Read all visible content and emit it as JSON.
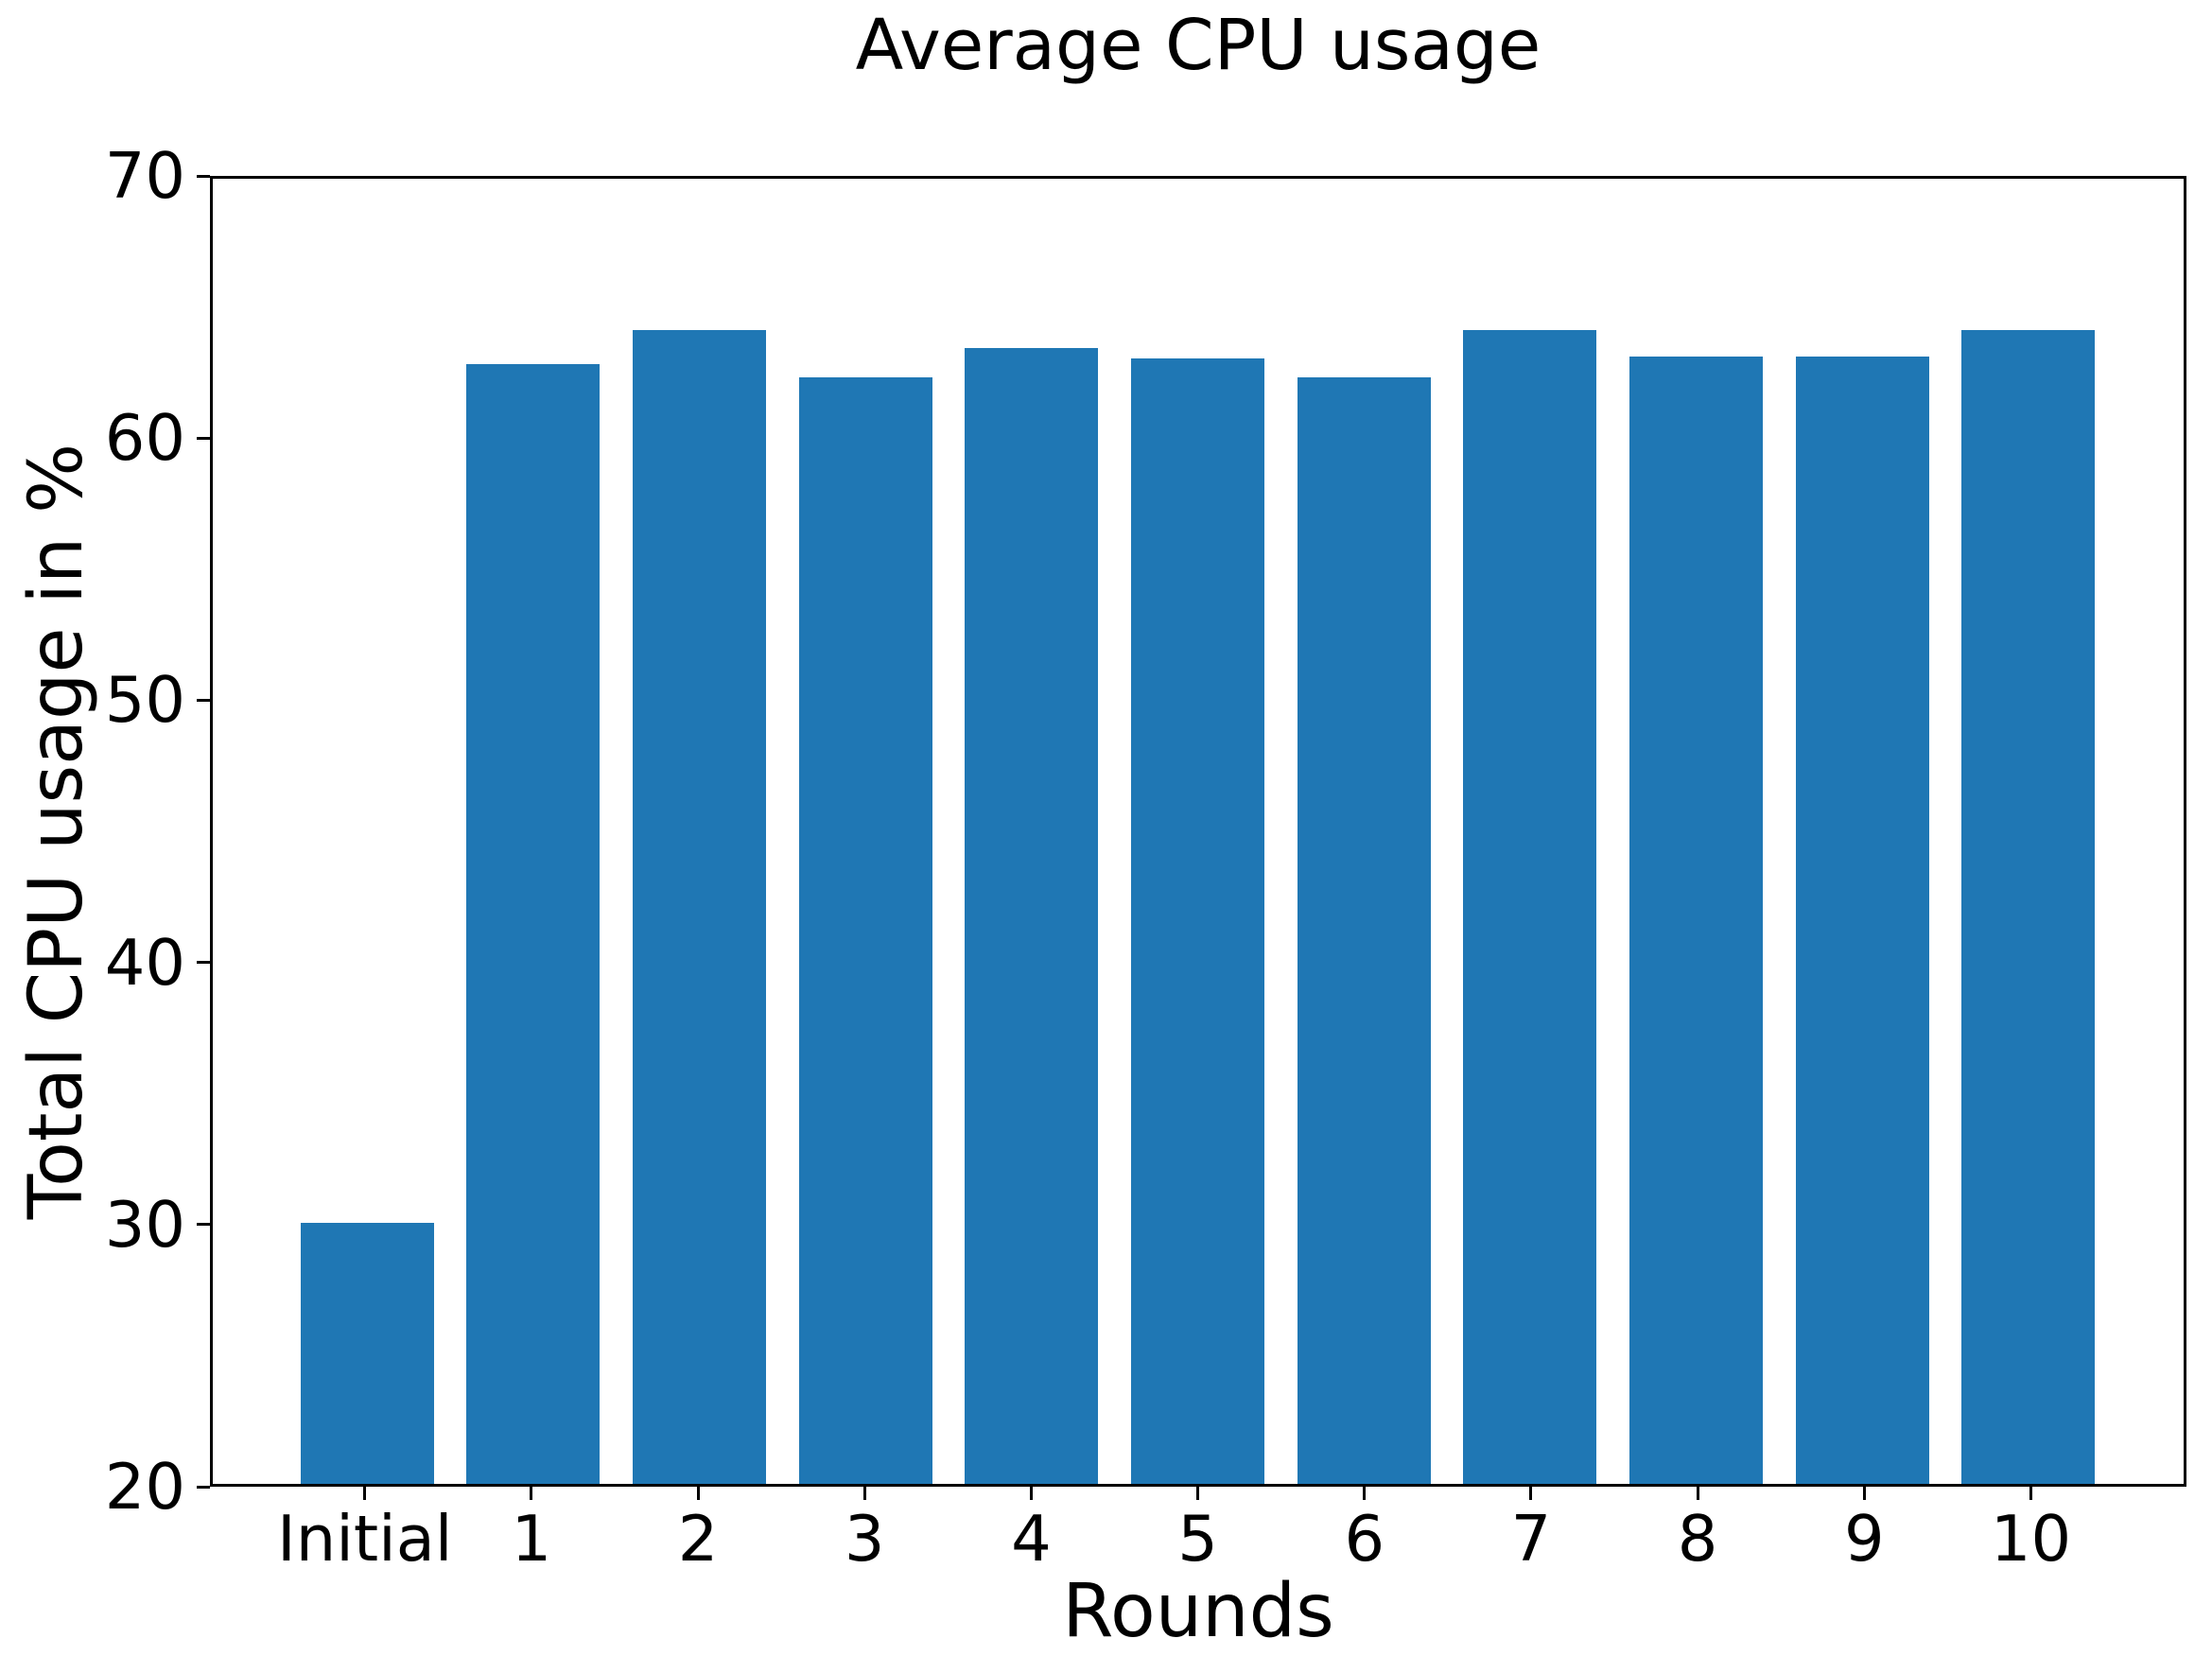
{
  "chart_data": {
    "type": "bar",
    "title": "Average CPU usage",
    "xlabel": "Rounds",
    "ylabel": "Total CPU usage in %",
    "categories": [
      "Initial",
      "1",
      "2",
      "3",
      "4",
      "5",
      "6",
      "7",
      "8",
      "9",
      "10"
    ],
    "values": [
      30.0,
      62.9,
      64.2,
      62.4,
      63.5,
      63.1,
      62.4,
      64.2,
      63.2,
      63.2,
      64.2
    ],
    "ylim": [
      20,
      70
    ],
    "yticks": [
      20,
      30,
      40,
      50,
      60,
      70
    ],
    "bar_color": "#1f77b4",
    "text_color": "#000000",
    "axis_color": "#000000",
    "grid": false,
    "legend_position": "none"
  }
}
